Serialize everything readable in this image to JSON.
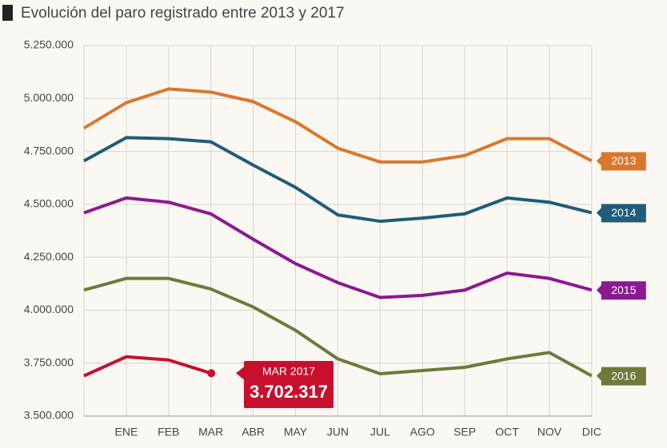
{
  "chart_data": {
    "type": "line",
    "title": "Evolución del paro registrado entre 2013 y 2017",
    "categories": [
      null,
      "ENE",
      "FEB",
      "MAR",
      "ABR",
      "MAY",
      "JUN",
      "JUL",
      "AGO",
      "SEP",
      "OCT",
      "NOV",
      "DIC"
    ],
    "ylim": [
      3500000,
      5250000
    ],
    "yticks": [
      {
        "value": 3500000,
        "label": "3.500.000"
      },
      {
        "value": 3750000,
        "label": "3.750.000"
      },
      {
        "value": 4000000,
        "label": "4.000.000"
      },
      {
        "value": 4250000,
        "label": "4.250.000"
      },
      {
        "value": 4500000,
        "label": "4.500.000"
      },
      {
        "value": 4750000,
        "label": "4.750.000"
      },
      {
        "value": 5000000,
        "label": "5.000.000"
      },
      {
        "value": 5250000,
        "label": "5.250.000"
      }
    ],
    "grid": true,
    "series": [
      {
        "name": "2013",
        "color": "#d9782d",
        "values": [
          4860000,
          4980000,
          5045000,
          5030000,
          4985000,
          4890000,
          4765000,
          4700000,
          4700000,
          4730000,
          4810000,
          4810000,
          4705000
        ]
      },
      {
        "name": "2014",
        "color": "#1f5c78",
        "values": [
          4705000,
          4815000,
          4810000,
          4795000,
          4685000,
          4580000,
          4450000,
          4420000,
          4435000,
          4455000,
          4530000,
          4510000,
          4460000
        ]
      },
      {
        "name": "2015",
        "color": "#8b1a8f",
        "values": [
          4460000,
          4530000,
          4510000,
          4455000,
          4335000,
          4220000,
          4130000,
          4060000,
          4070000,
          4095000,
          4175000,
          4150000,
          4095000
        ]
      },
      {
        "name": "2016",
        "color": "#6e7a3a",
        "values": [
          4095000,
          4150000,
          4150000,
          4100000,
          4015000,
          3905000,
          3770000,
          3700000,
          3715000,
          3730000,
          3770000,
          3800000,
          3690000
        ]
      },
      {
        "color": "#c8102e",
        "values": [
          3690000,
          3780000,
          3765000,
          3702317,
          null,
          null,
          null,
          null,
          null,
          null,
          null,
          null,
          null
        ],
        "value_labels": [
          null,
          null,
          null,
          "3.702.317",
          null,
          null,
          null,
          null,
          null,
          null,
          null,
          null,
          null
        ]
      }
    ],
    "annotation": "MAR 2017"
  }
}
